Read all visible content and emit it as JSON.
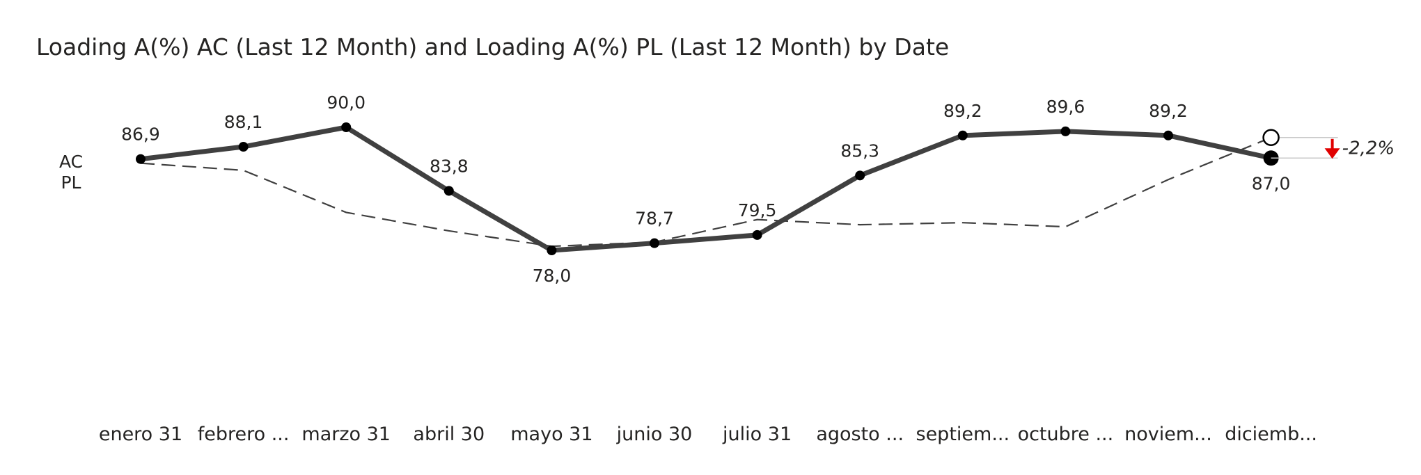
{
  "chart_data": {
    "type": "line",
    "title": "Loading A(%) AC (Last 12 Month) and Loading A(%) PL (Last 12 Month) by Date",
    "categories": [
      "enero 31",
      "febrero ...",
      "marzo 31",
      "abril 30",
      "mayo 31",
      "junio 30",
      "julio 31",
      "agosto ...",
      "septiem...",
      "octubre ...",
      "noviem...",
      "diciemb..."
    ],
    "series": [
      {
        "name": "AC",
        "values": [
          86.9,
          88.1,
          90.0,
          83.8,
          78.0,
          78.7,
          79.5,
          85.3,
          89.2,
          89.6,
          89.2,
          87.0
        ],
        "data_labels": [
          "86,9",
          "88,1",
          "90,0",
          "83,8",
          "78,0",
          "78,7",
          "79,5",
          "85,3",
          "89,2",
          "89,6",
          "89,2",
          "87,0"
        ]
      },
      {
        "name": "PL",
        "values": [
          86.5,
          85.8,
          81.7,
          79.9,
          78.4,
          78.8,
          81.0,
          80.5,
          80.7,
          80.3,
          84.9,
          89.0
        ]
      }
    ],
    "variance_label": "-2,2%",
    "variance_color": "#e00000",
    "ac_color": "#404040",
    "pl_color": "#404040",
    "ylim": [
      72,
      95
    ],
    "grid": false,
    "legend": "left"
  }
}
